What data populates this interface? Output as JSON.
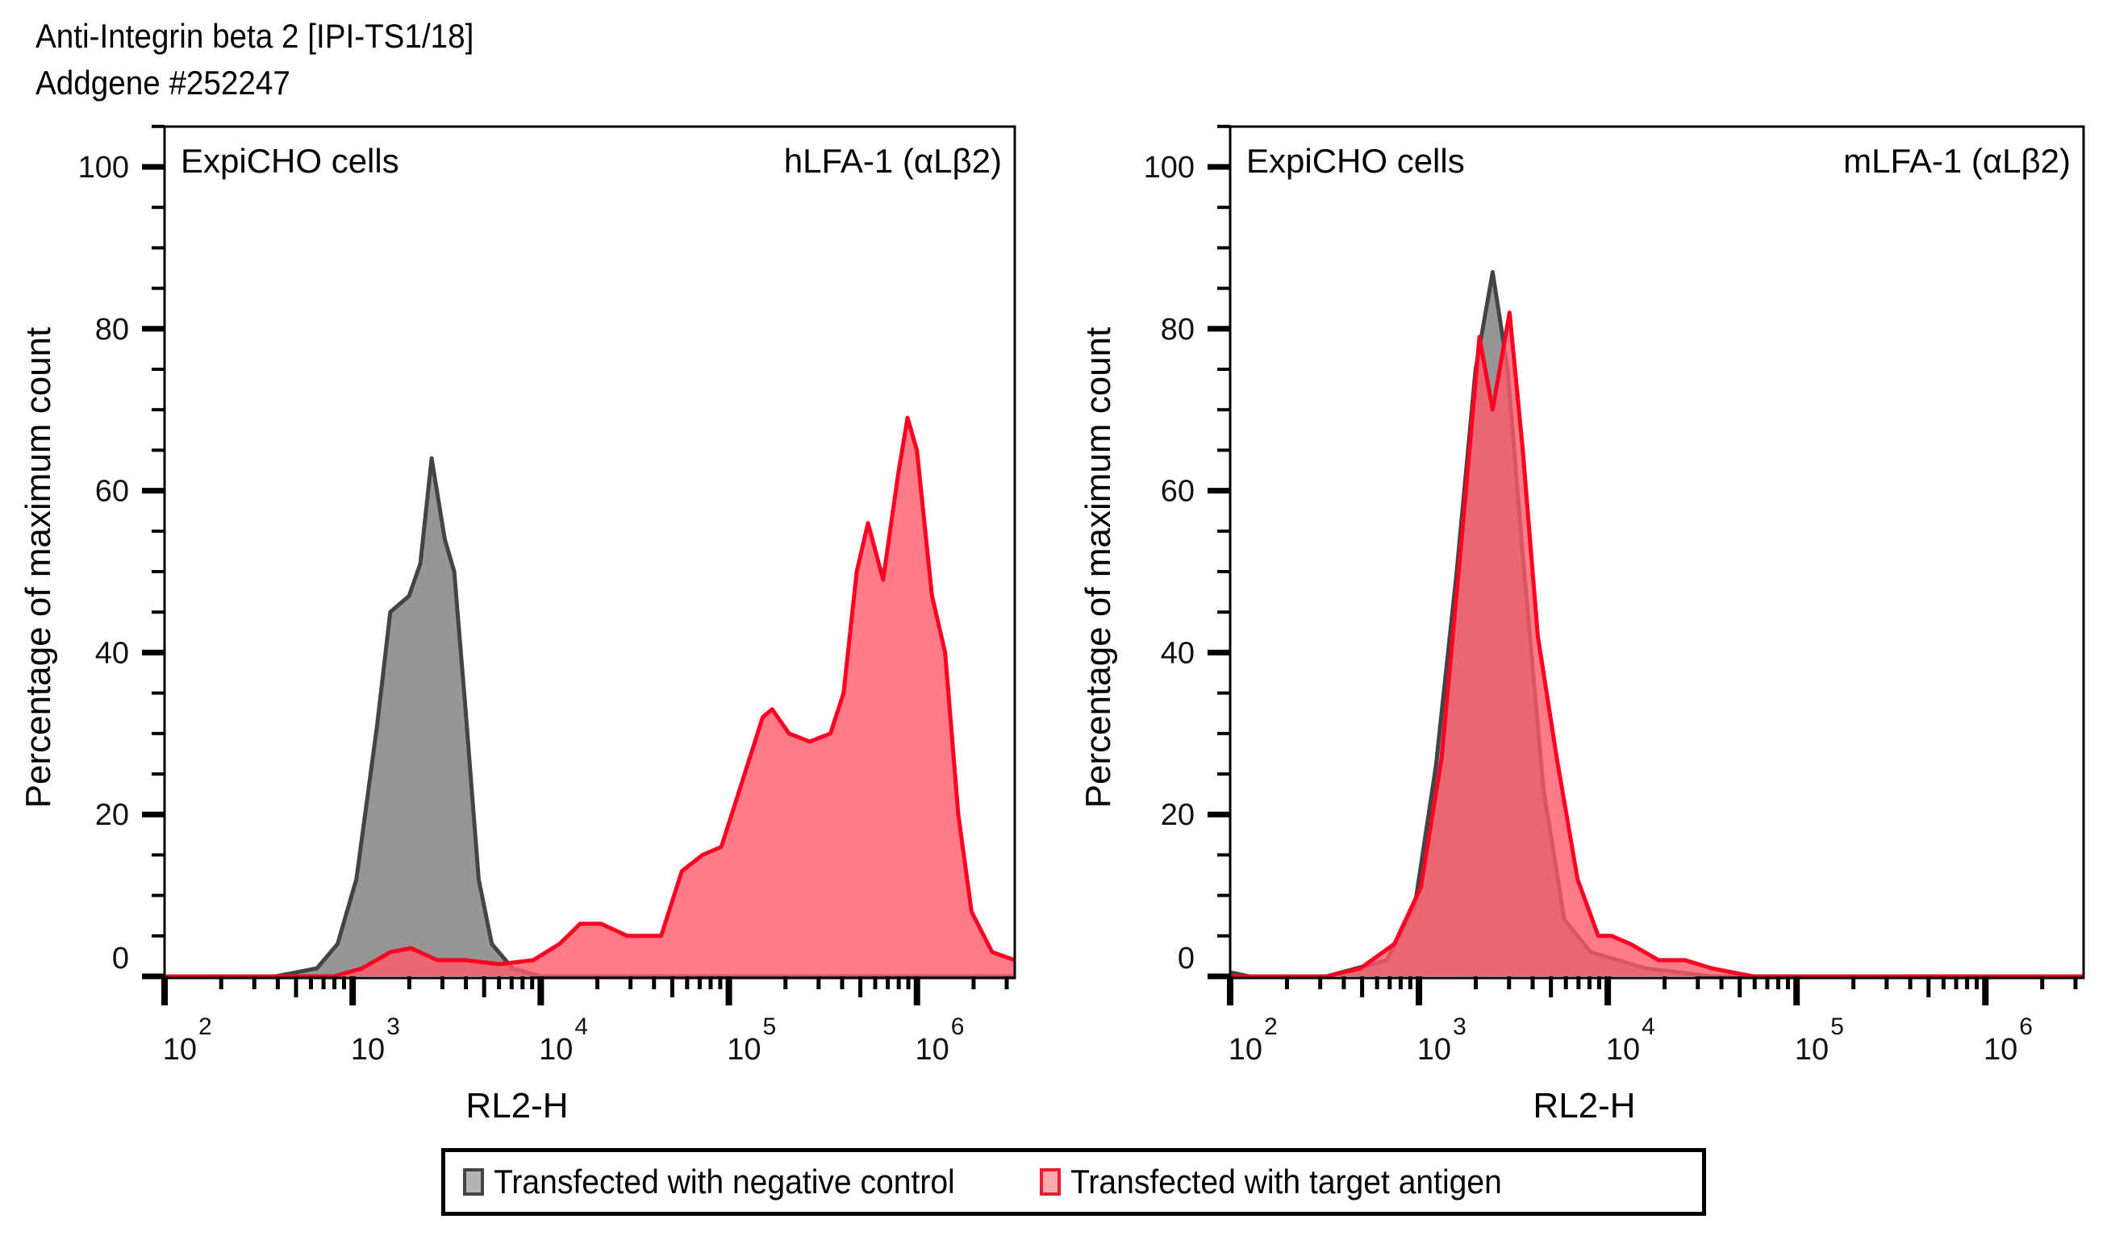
{
  "header": {
    "title_line1": "Anti-Integrin beta 2 [IPI-TS1/18]",
    "title_line2": "Addgene #252247"
  },
  "legend": {
    "items": [
      {
        "label": "Transfected with negative control",
        "fill": "#b4b4b4",
        "stroke": "#444444"
      },
      {
        "label": "Transfected with target antigen",
        "fill": "#ffaaae",
        "stroke": "#ee1c2e"
      }
    ]
  },
  "colors": {
    "control_fill": "#969696",
    "control_stroke": "#444444",
    "target_fill": "#ff5a69",
    "target_stroke": "#ff0022",
    "axis": "#000000"
  },
  "chart_data": [
    {
      "type": "area",
      "title": "",
      "cell_label": "ExpiCHO cells",
      "target_label": "hLFA-1 (αLβ2)",
      "xlabel": "RL2-H",
      "ylabel": "Percentage of maximum count",
      "x_scale": "log10",
      "xlim_log10": [
        2.0,
        6.52
      ],
      "ylim": [
        0,
        105
      ],
      "y_ticks": [
        0,
        20,
        40,
        60,
        80,
        100
      ],
      "y_tick_labels": [
        "0",
        "20",
        "40",
        "60",
        "80",
        "100"
      ],
      "x_ticks_log10": [
        2,
        3,
        4,
        5,
        6
      ],
      "x_tick_labels": [
        {
          "base": "10",
          "exp": "2"
        },
        {
          "base": "10",
          "exp": "3"
        },
        {
          "base": "10",
          "exp": "4"
        },
        {
          "base": "10",
          "exp": "5"
        },
        {
          "base": "10",
          "exp": "6"
        }
      ],
      "grid": false,
      "legend_position": "bottom-center",
      "series": [
        {
          "name": "Transfected with negative control",
          "x_log10": [
            2.0,
            2.59,
            2.81,
            2.92,
            3.02,
            3.13,
            3.2,
            3.3,
            3.36,
            3.42,
            3.49,
            3.54,
            3.6,
            3.67,
            3.74,
            3.85,
            4.0,
            4.3,
            6.52
          ],
          "values": [
            0,
            0,
            1,
            4,
            12,
            31,
            45,
            47,
            51,
            64,
            54,
            50,
            33,
            12,
            4,
            1,
            0,
            0,
            0
          ]
        },
        {
          "name": "Transfected with target antigen",
          "x_log10": [
            2.0,
            2.9,
            3.05,
            3.2,
            3.31,
            3.45,
            3.6,
            3.78,
            3.96,
            4.1,
            4.21,
            4.32,
            4.46,
            4.64,
            4.75,
            4.86,
            4.96,
            5.07,
            5.18,
            5.23,
            5.32,
            5.43,
            5.54,
            5.61,
            5.68,
            5.74,
            5.82,
            5.9,
            5.95,
            6.0,
            6.08,
            6.15,
            6.22,
            6.29,
            6.4,
            6.52
          ],
          "values": [
            0,
            0,
            1,
            3,
            3.5,
            2,
            2,
            1.5,
            2,
            4,
            6.5,
            6.5,
            5,
            5,
            13,
            15,
            16,
            24,
            32,
            33,
            30,
            29,
            30,
            35,
            50,
            56,
            49,
            62,
            69,
            65,
            47,
            40,
            20,
            8,
            3,
            2
          ]
        }
      ]
    },
    {
      "type": "area",
      "title": "",
      "cell_label": "ExpiCHO cells",
      "target_label": "mLFA-1 (αLβ2)",
      "xlabel": "RL2-H",
      "ylabel": "Percentage of maximum count",
      "x_scale": "log10",
      "xlim_log10": [
        2.0,
        6.52
      ],
      "ylim": [
        0,
        105
      ],
      "y_ticks": [
        0,
        20,
        40,
        60,
        80,
        100
      ],
      "y_tick_labels": [
        "0",
        "20",
        "40",
        "60",
        "80",
        "100"
      ],
      "x_ticks_log10": [
        2,
        3,
        4,
        5,
        6
      ],
      "x_tick_labels": [
        {
          "base": "10",
          "exp": "2"
        },
        {
          "base": "10",
          "exp": "3"
        },
        {
          "base": "10",
          "exp": "4"
        },
        {
          "base": "10",
          "exp": "5"
        },
        {
          "base": "10",
          "exp": "6"
        }
      ],
      "grid": false,
      "legend_position": "bottom-center",
      "series": [
        {
          "name": "Transfected with negative control",
          "x_log10": [
            2.0,
            2.1,
            2.51,
            2.83,
            2.98,
            3.09,
            3.2,
            3.3,
            3.39,
            3.47,
            3.55,
            3.66,
            3.77,
            3.91,
            4.2,
            4.55,
            6.52
          ],
          "values": [
            0.5,
            0,
            0,
            2,
            9,
            26,
            50,
            75,
            87,
            75,
            52,
            23,
            7,
            3,
            1,
            0,
            0
          ]
        },
        {
          "name": "Transfected with target antigen",
          "x_log10": [
            2.0,
            2.51,
            2.69,
            2.87,
            3.01,
            3.12,
            3.23,
            3.32,
            3.39,
            3.48,
            3.55,
            3.63,
            3.73,
            3.84,
            3.95,
            4.02,
            4.12,
            4.27,
            4.41,
            4.55,
            4.77,
            6.52
          ],
          "values": [
            0,
            0,
            1,
            4,
            11,
            27,
            55,
            79,
            70,
            82,
            65,
            42,
            27,
            12,
            5,
            5,
            4,
            2,
            2,
            1,
            0,
            0
          ]
        }
      ]
    }
  ]
}
